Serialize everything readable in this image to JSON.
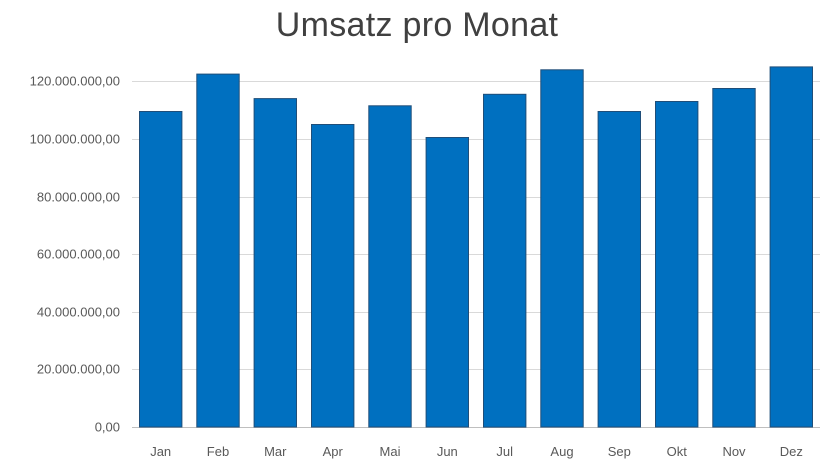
{
  "chart_data": {
    "type": "bar",
    "title": "Umsatz pro Monat",
    "xlabel": "",
    "ylabel": "",
    "categories": [
      "Jan",
      "Feb",
      "Mar",
      "Apr",
      "Mai",
      "Jun",
      "Jul",
      "Aug",
      "Sep",
      "Okt",
      "Nov",
      "Dez"
    ],
    "values": [
      109500000,
      122500000,
      114000000,
      105000000,
      111500000,
      100500000,
      115500000,
      124000000,
      109500000,
      113000000,
      117500000,
      125000000
    ],
    "y_ticks": [
      "0,00",
      "20.000.000,00",
      "40.000.000,00",
      "60.000.000,00",
      "80.000.000,00",
      "100.000.000,00",
      "120.000.000,00"
    ],
    "y_tick_values": [
      0,
      20000000,
      40000000,
      60000000,
      80000000,
      100000000,
      120000000
    ],
    "ylim": [
      0,
      126000000
    ],
    "grid": true,
    "legend": "none",
    "bar_color": "#0070C0"
  }
}
